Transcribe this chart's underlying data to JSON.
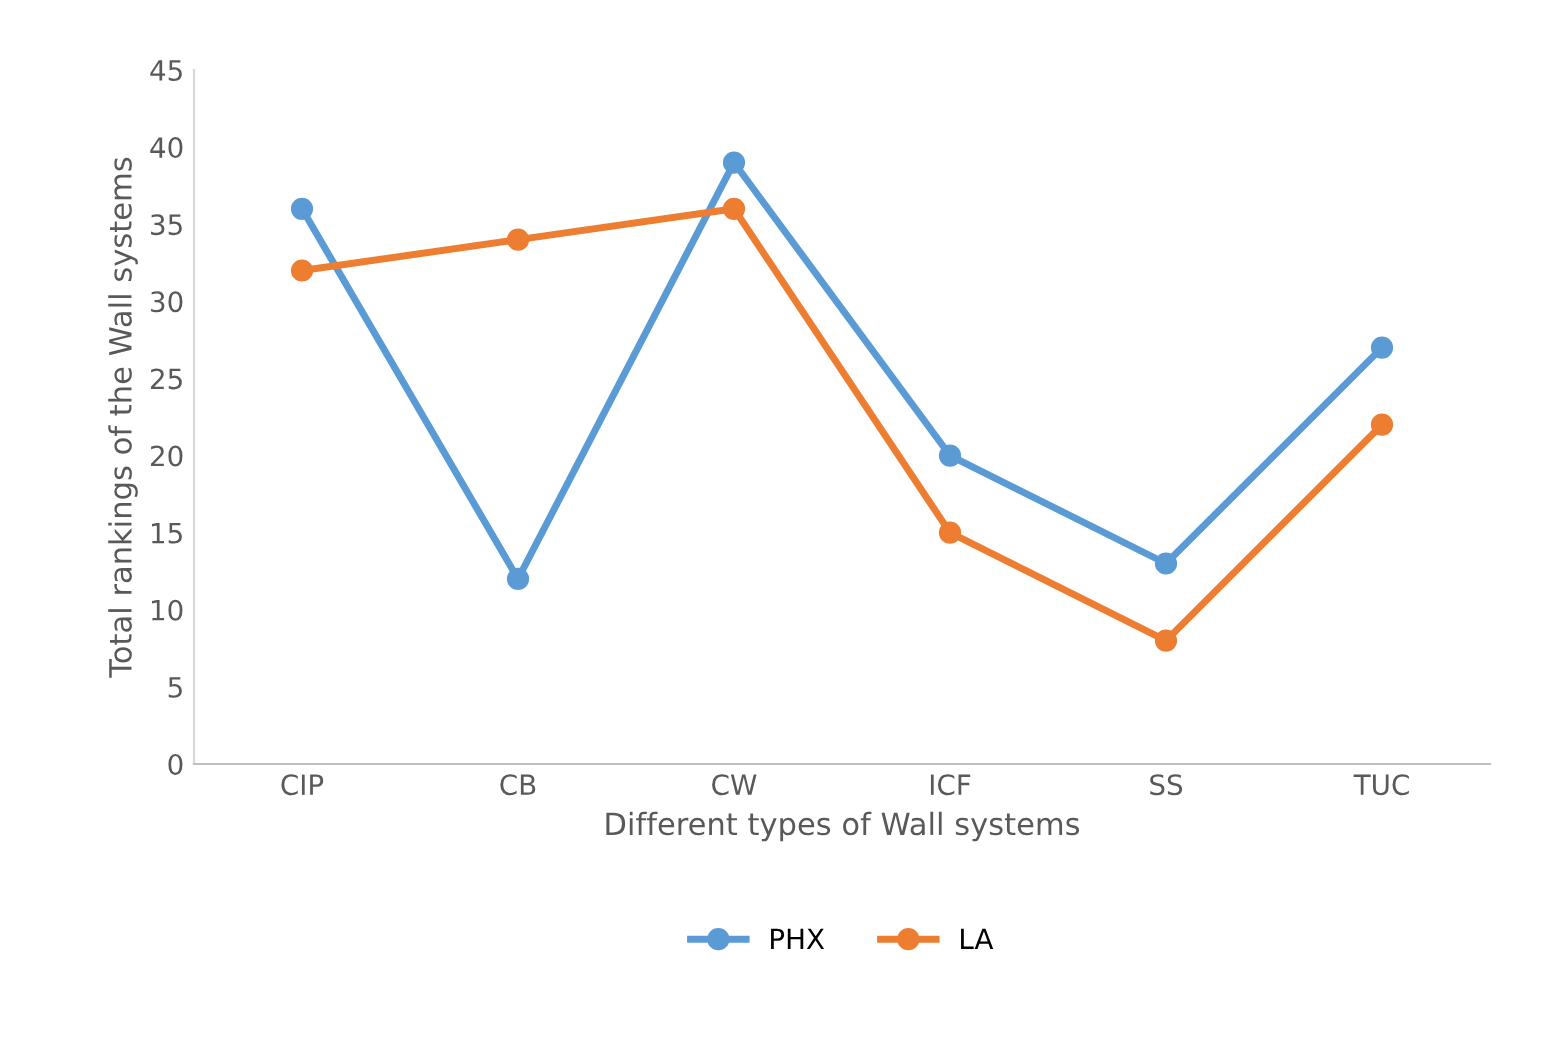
{
  "chart_data": {
    "type": "line",
    "xlabel": "Different types of Wall systems",
    "ylabel": "Total rankings of the Wall systems",
    "categories": [
      "CIP",
      "CB",
      "CW",
      "ICF",
      "SS",
      "TUC"
    ],
    "series": [
      {
        "name": "PHX",
        "color": "#5b9bd5",
        "values": [
          36,
          12,
          39,
          20,
          13,
          27
        ]
      },
      {
        "name": "LA",
        "color": "#ed7d31",
        "values": [
          32,
          34,
          36,
          15,
          8,
          22
        ]
      }
    ],
    "ylim": [
      0,
      45
    ],
    "yticks": [
      0,
      5,
      10,
      15,
      20,
      25,
      30,
      35,
      40,
      45
    ],
    "grid": false,
    "legend": "bottom",
    "marker": "circle",
    "line_style": "solid"
  }
}
